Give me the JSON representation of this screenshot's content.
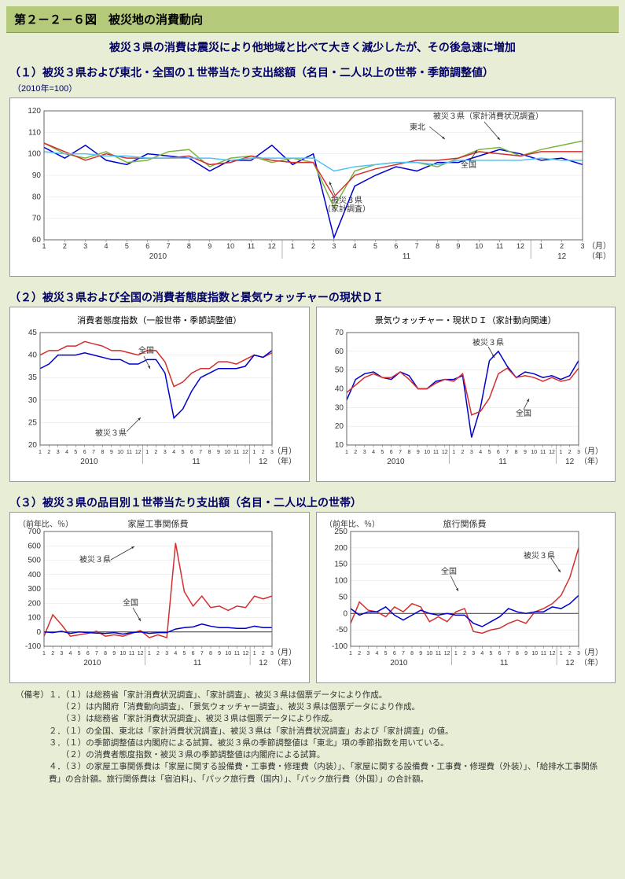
{
  "titleBar": "第２－２－６図　被災地の消費動向",
  "subtitle": "被災３県の消費は震災により他地域と比べて大きく減少したが、その後急速に増加",
  "section1": {
    "title": "（１）被災３県および東北・全国の１世帯当たり支出総額（名目・二人以上の世帯・季節調整値）",
    "note": "（2010年=100）",
    "ylim": [
      60,
      120
    ],
    "yticks": [
      60,
      70,
      80,
      90,
      100,
      110,
      120
    ],
    "xAxisLabel": "（月）",
    "xYearLabel": "（年）",
    "monthLabels": [
      "1",
      "2",
      "3",
      "4",
      "5",
      "6",
      "7",
      "8",
      "9",
      "10",
      "11",
      "12",
      "1",
      "2",
      "3",
      "4",
      "5",
      "6",
      "7",
      "8",
      "9",
      "10",
      "11",
      "12",
      "1",
      "2",
      "3"
    ],
    "yearLabels": [
      "2010",
      "11",
      "12"
    ],
    "annotations": {
      "kakei": "被災３県（家計消費状況調査）",
      "tohoku": "東北",
      "zenkoku": "全国",
      "kakeichosa": "被災３県\n（家計調査）"
    },
    "series": [
      {
        "name": "被災３県家計調査",
        "color": "#0000cc",
        "width": 1.5,
        "data": [
          103,
          98,
          104,
          97,
          95,
          100,
          99,
          98,
          92,
          97,
          97,
          104,
          95,
          100,
          61,
          85,
          90,
          94,
          92,
          96,
          96,
          99,
          102,
          100,
          97,
          98,
          95
        ]
      },
      {
        "name": "被災３県家計消費状況",
        "color": "#7cb342",
        "width": 1.5,
        "data": [
          105,
          100,
          98,
          101,
          96,
          97,
          101,
          102,
          94,
          98,
          99,
          96,
          98,
          96,
          75,
          92,
          95,
          96,
          96,
          94,
          98,
          102,
          103,
          99,
          102,
          104,
          106
        ]
      },
      {
        "name": "東北",
        "color": "#d32f2f",
        "width": 1.5,
        "data": [
          105,
          101,
          97,
          100,
          98,
          98,
          98,
          99,
          95,
          96,
          99,
          97,
          96,
          96,
          80,
          90,
          93,
          95,
          97,
          97,
          98,
          101,
          100,
          99,
          101,
          101,
          101
        ]
      },
      {
        "name": "全国",
        "color": "#4fc3f7",
        "width": 1.5,
        "data": [
          101,
          100,
          100,
          99,
          99,
          98,
          98,
          98,
          98,
          97,
          98,
          98,
          98,
          98,
          92,
          94,
          95,
          96,
          96,
          95,
          97,
          97,
          97,
          97,
          98,
          97,
          97
        ]
      }
    ]
  },
  "section2": {
    "title": "（２）被災３県および全国の消費者態度指数と景気ウォッチャーの現状ＤＩ",
    "left": {
      "subtitle": "消費者態度指数（一般世帯・季節調整値）",
      "ylim": [
        20,
        45
      ],
      "yticks": [
        20,
        25,
        30,
        35,
        40,
        45
      ],
      "monthLabels": [
        "1",
        "2",
        "3",
        "4",
        "5",
        "6",
        "7",
        "8",
        "9",
        "10",
        "11",
        "12",
        "1",
        "2",
        "3",
        "4",
        "5",
        "6",
        "7",
        "8",
        "9",
        "10",
        "11",
        "12",
        "1",
        "2",
        "3"
      ],
      "yearLabels": [
        "2010",
        "11",
        "12"
      ],
      "labels": {
        "zenkoku": "全国",
        "hisai": "被災３県"
      },
      "series": [
        {
          "name": "全国",
          "color": "#d32f2f",
          "width": 1.5,
          "data": [
            40,
            41,
            41,
            42,
            42,
            43,
            42.5,
            42,
            41,
            41,
            40.5,
            40,
            41,
            41,
            38.5,
            33,
            34,
            36,
            37,
            37,
            38.5,
            38.5,
            38,
            39,
            40,
            39.5,
            40.5
          ]
        },
        {
          "name": "被災３県",
          "color": "#0000cc",
          "width": 1.5,
          "data": [
            37,
            38,
            40,
            40,
            40,
            40.5,
            40,
            39.5,
            39,
            39,
            38,
            38,
            39,
            39,
            36,
            26,
            28,
            32,
            35,
            36,
            37,
            37,
            37,
            37.5,
            40,
            39.5,
            41
          ]
        }
      ]
    },
    "right": {
      "subtitle": "景気ウォッチャー・現状ＤＩ（家計動向関連）",
      "ylim": [
        10,
        70
      ],
      "yticks": [
        10,
        20,
        30,
        40,
        50,
        60,
        70
      ],
      "monthLabels": [
        "1",
        "2",
        "3",
        "4",
        "5",
        "6",
        "7",
        "8",
        "9",
        "10",
        "11",
        "12",
        "1",
        "2",
        "3",
        "4",
        "5",
        "6",
        "7",
        "8",
        "9",
        "10",
        "11",
        "12",
        "1",
        "2",
        "3"
      ],
      "yearLabels": [
        "2010",
        "11",
        "12"
      ],
      "labels": {
        "zenkoku": "全国",
        "hisai": "被災３県"
      },
      "series": [
        {
          "name": "被災３県",
          "color": "#0000cc",
          "width": 1.5,
          "data": [
            34,
            45,
            48,
            49,
            46,
            45,
            49,
            47,
            40,
            40,
            44,
            45,
            45,
            47,
            14,
            30,
            55,
            60,
            52,
            46,
            49,
            48,
            46,
            47,
            45,
            47,
            55
          ]
        },
        {
          "name": "全国",
          "color": "#d32f2f",
          "width": 1.5,
          "data": [
            38,
            42,
            46,
            48,
            46,
            46,
            49,
            45,
            40,
            40,
            43,
            45,
            44,
            48,
            26,
            28,
            35,
            48,
            51,
            46,
            47,
            46,
            44,
            46,
            44,
            45,
            51
          ]
        }
      ]
    }
  },
  "section3": {
    "title": "（３）被災３県の品目別１世帯当たり支出額（名目・二人以上の世帯）",
    "left": {
      "subtitle": "家屋工事関係費",
      "yLabel": "（前年比、％）",
      "ylim": [
        -100,
        700
      ],
      "yticks": [
        -100,
        0,
        100,
        200,
        300,
        400,
        500,
        600,
        700
      ],
      "monthLabels": [
        "1",
        "2",
        "3",
        "4",
        "5",
        "6",
        "7",
        "8",
        "9",
        "10",
        "11",
        "12",
        "1",
        "2",
        "3",
        "4",
        "5",
        "6",
        "7",
        "8",
        "9",
        "10",
        "11",
        "12",
        "1",
        "2",
        "3"
      ],
      "yearLabels": [
        "2010",
        "11",
        "12"
      ],
      "labels": {
        "zenkoku": "全国",
        "hisai": "被災３県"
      },
      "series": [
        {
          "name": "被災３県",
          "color": "#d32f2f",
          "width": 1.5,
          "data": [
            -30,
            120,
            50,
            -30,
            -20,
            -10,
            5,
            -30,
            -20,
            -30,
            -10,
            10,
            -40,
            -20,
            -40,
            620,
            280,
            180,
            250,
            170,
            180,
            150,
            180,
            170,
            250,
            230,
            250
          ]
        },
        {
          "name": "全国",
          "color": "#0000cc",
          "width": 1.5,
          "data": [
            0,
            -5,
            5,
            -10,
            0,
            -5,
            -8,
            -10,
            -5,
            -15,
            -5,
            0,
            -10,
            -5,
            -5,
            20,
            30,
            35,
            55,
            40,
            30,
            30,
            25,
            25,
            40,
            30,
            30
          ]
        }
      ]
    },
    "right": {
      "subtitle": "旅行関係費",
      "yLabel": "（前年比、％）",
      "ylim": [
        -100,
        250
      ],
      "yticks": [
        -100,
        -50,
        0,
        50,
        100,
        150,
        200,
        250
      ],
      "monthLabels": [
        "1",
        "2",
        "3",
        "4",
        "5",
        "6",
        "7",
        "8",
        "9",
        "10",
        "11",
        "12",
        "1",
        "2",
        "3",
        "4",
        "5",
        "6",
        "7",
        "8",
        "9",
        "10",
        "11",
        "12",
        "1",
        "2",
        "3"
      ],
      "yearLabels": [
        "2010",
        "11",
        "12"
      ],
      "labels": {
        "zenkoku": "全国",
        "hisai": "被災３県"
      },
      "series": [
        {
          "name": "被災３県",
          "color": "#d32f2f",
          "width": 1.5,
          "data": [
            -30,
            35,
            10,
            5,
            -10,
            20,
            5,
            30,
            20,
            -25,
            -10,
            -25,
            5,
            15,
            -55,
            -60,
            -50,
            -45,
            -30,
            -20,
            -30,
            5,
            15,
            30,
            55,
            110,
            200
          ]
        },
        {
          "name": "全国",
          "color": "#0000cc",
          "width": 1.5,
          "data": [
            15,
            -5,
            5,
            5,
            20,
            -5,
            -20,
            -5,
            10,
            0,
            -5,
            0,
            -5,
            -5,
            -30,
            -40,
            -25,
            -10,
            15,
            5,
            0,
            5,
            5,
            20,
            15,
            30,
            55
          ]
        }
      ]
    }
  },
  "axisLabels": {
    "month": "（月）",
    "year": "（年）"
  },
  "notes": {
    "prefix": "（備考）",
    "lines": [
      "１．（１）は総務省「家計消費状況調査」、「家計調査」、被災３県は個票データにより作成。",
      "　　（２）は内閣府「消費動向調査」、「景気ウォッチャー調査」、被災３県は個票データにより作成。",
      "　　（３）は総務省「家計消費状況調査」、被災３県は個票データにより作成。",
      "２．（１）の全国、東北は「家計消費状況調査」、被災３県は「家計消費状況調査」および「家計調査」の値。",
      "３．（１）の季節調整値は内閣府による試算。被災３県の季節調整値は「東北」項の季節指数を用いている。",
      "　　（２）の消費者態度指数・被災３県の季節調整値は内閣府による試算。",
      "４．（３）の家屋工事関係費は「家屋に関する設備費・工事費・修理費（内装）」、「家屋に関する設備費・工事費・修理費（外装）」、「給排水工事関係費」の合計額。旅行関係費は「宿泊料」、「パック旅行費（国内）」、「パック旅行費（外国）」の合計額。"
    ]
  }
}
